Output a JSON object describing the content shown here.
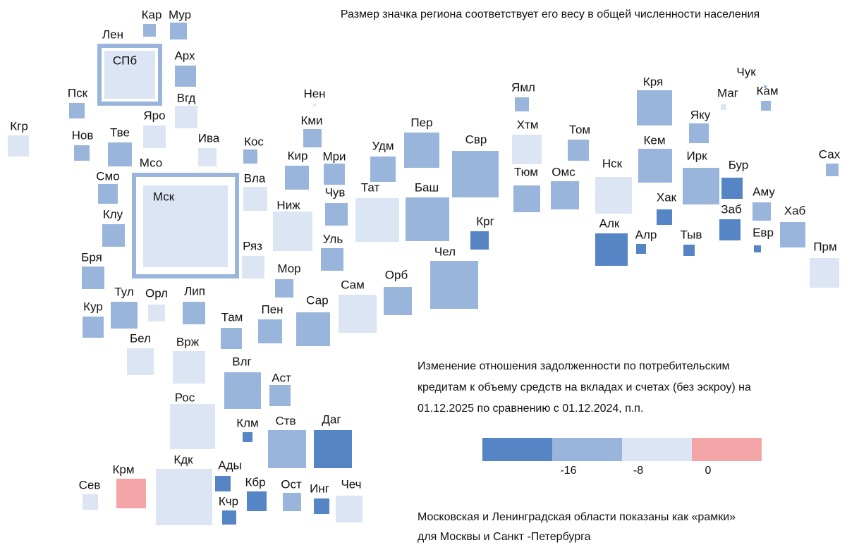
{
  "title": "Размер значка региона соответствует его весу в общей численности населения",
  "regions": [
    {
      "label": "Кар",
      "color": "#9ab5dc"
    },
    {
      "label": "Мур",
      "color": "#9ab5dc"
    },
    {
      "label": "Лен",
      "color": "#9ab5dc"
    },
    {
      "label": "СПб",
      "color": "#dce5f3"
    },
    {
      "label": "Арх",
      "color": "#9ab5dc"
    },
    {
      "label": "Пск",
      "color": "#9ab5dc"
    },
    {
      "label": "Вгд",
      "color": "#dce5f3"
    },
    {
      "label": "Яро",
      "color": "#dce5f3"
    },
    {
      "label": "Кгр",
      "color": "#dce5f3"
    },
    {
      "label": "Нов",
      "color": "#9ab5dc"
    },
    {
      "label": "Тве",
      "color": "#9ab5dc"
    },
    {
      "label": "Ива",
      "color": "#dce5f3"
    },
    {
      "label": "Кос",
      "color": "#9ab5dc"
    },
    {
      "label": "Мсо",
      "color": "#9ab5dc"
    },
    {
      "label": "Мск",
      "color": "#dce5f3"
    },
    {
      "label": "Смо",
      "color": "#9ab5dc"
    },
    {
      "label": "Вла",
      "color": "#dce5f3"
    },
    {
      "label": "Клу",
      "color": "#9ab5dc"
    },
    {
      "label": "Бря",
      "color": "#9ab5dc"
    },
    {
      "label": "Кур",
      "color": "#9ab5dc"
    },
    {
      "label": "Тул",
      "color": "#9ab5dc"
    },
    {
      "label": "Орл",
      "color": "#dce5f3"
    },
    {
      "label": "Лип",
      "color": "#9ab5dc"
    },
    {
      "label": "Ряз",
      "color": "#dce5f3"
    },
    {
      "label": "Ниж",
      "color": "#dce5f3"
    },
    {
      "label": "Кир",
      "color": "#9ab5dc"
    },
    {
      "label": "Кми",
      "color": "#9ab5dc"
    },
    {
      "label": "Нен",
      "color": "#dce5f3"
    },
    {
      "label": "Мри",
      "color": "#9ab5dc"
    },
    {
      "label": "Чув",
      "color": "#9ab5dc"
    },
    {
      "label": "Уль",
      "color": "#9ab5dc"
    },
    {
      "label": "Мор",
      "color": "#9ab5dc"
    },
    {
      "label": "Там",
      "color": "#9ab5dc"
    },
    {
      "label": "Пен",
      "color": "#9ab5dc"
    },
    {
      "label": "Сар",
      "color": "#9ab5dc"
    },
    {
      "label": "Сам",
      "color": "#dce5f3"
    },
    {
      "label": "Орб",
      "color": "#9ab5dc"
    },
    {
      "label": "Тат",
      "color": "#dce5f3"
    },
    {
      "label": "Баш",
      "color": "#9ab5dc"
    },
    {
      "label": "Удм",
      "color": "#9ab5dc"
    },
    {
      "label": "Пер",
      "color": "#9ab5dc"
    },
    {
      "label": "Свр",
      "color": "#9ab5dc"
    },
    {
      "label": "Крг",
      "color": "#5585c5"
    },
    {
      "label": "Чел",
      "color": "#9ab5dc"
    },
    {
      "label": "Ямл",
      "color": "#9ab5dc"
    },
    {
      "label": "Хтм",
      "color": "#dce5f3"
    },
    {
      "label": "Тюм",
      "color": "#9ab5dc"
    },
    {
      "label": "Омс",
      "color": "#9ab5dc"
    },
    {
      "label": "Том",
      "color": "#9ab5dc"
    },
    {
      "label": "Нск",
      "color": "#dce5f3"
    },
    {
      "label": "Алк",
      "color": "#5585c5"
    },
    {
      "label": "Кря",
      "color": "#9ab5dc"
    },
    {
      "label": "Кем",
      "color": "#9ab5dc"
    },
    {
      "label": "Яку",
      "color": "#9ab5dc"
    },
    {
      "label": "Ирк",
      "color": "#9ab5dc"
    },
    {
      "label": "Бур",
      "color": "#5585c5"
    },
    {
      "label": "Хак",
      "color": "#5585c5"
    },
    {
      "label": "Алр",
      "color": "#5585c5"
    },
    {
      "label": "Тыв",
      "color": "#5585c5"
    },
    {
      "label": "Заб",
      "color": "#5585c5"
    },
    {
      "label": "Аму",
      "color": "#9ab5dc"
    },
    {
      "label": "Евр",
      "color": "#5585c5"
    },
    {
      "label": "Хаб",
      "color": "#9ab5dc"
    },
    {
      "label": "Прм",
      "color": "#dce5f3"
    },
    {
      "label": "Сах",
      "color": "#9ab5dc"
    },
    {
      "label": "Чук",
      "color": "#9ab5dc"
    },
    {
      "label": "Маг",
      "color": "#dce5f3"
    },
    {
      "label": "Кам",
      "color": "#9ab5dc"
    },
    {
      "label": "Бел",
      "color": "#dce5f3"
    },
    {
      "label": "Врж",
      "color": "#dce5f3"
    },
    {
      "label": "Рос",
      "color": "#dce5f3"
    },
    {
      "label": "Влг",
      "color": "#9ab5dc"
    },
    {
      "label": "Аст",
      "color": "#9ab5dc"
    },
    {
      "label": "Клм",
      "color": "#5585c5"
    },
    {
      "label": "Ств",
      "color": "#9ab5dc"
    },
    {
      "label": "Даг",
      "color": "#5585c5"
    },
    {
      "label": "Крм",
      "color": "#f4a5a8"
    },
    {
      "label": "Сев",
      "color": "#dce5f3"
    },
    {
      "label": "Кдк",
      "color": "#dce5f3"
    },
    {
      "label": "Ады",
      "color": "#5585c5"
    },
    {
      "label": "Кбр",
      "color": "#5585c5"
    },
    {
      "label": "Кчр",
      "color": "#5585c5"
    },
    {
      "label": "Ост",
      "color": "#9ab5dc"
    },
    {
      "label": "Инг",
      "color": "#5585c5"
    },
    {
      "label": "Чеч",
      "color": "#dce5f3"
    }
  ],
  "legend": {
    "lines": [
      "Изменение отношения задолженности по потребительским",
      "кредитам к объему средств на вкладах и счетах (без эскроу) на",
      "01.12.2025 по сравнению с 01.12.2024, п.п."
    ],
    "colors": [
      "#5585c5",
      "#9ab5dc",
      "#dce5f3",
      "#f4a5a8"
    ],
    "ticks": [
      -16,
      -8,
      0
    ]
  },
  "notes": [
    "Московская и Ленинградская области показаны как «рамки»",
    "для Москвы и Санкт -Петербурга"
  ]
}
